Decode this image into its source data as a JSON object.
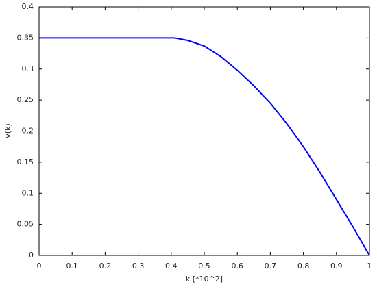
{
  "chart_data": {
    "type": "line",
    "x_label": "k [*10^2]",
    "y_label": "v(k)",
    "x": [
      0,
      0.1,
      0.2,
      0.3,
      0.4,
      0.41,
      0.45,
      0.5,
      0.55,
      0.6,
      0.65,
      0.7,
      0.75,
      0.8,
      0.85,
      0.9,
      0.95,
      1.0
    ],
    "series": [
      {
        "color": "#0000ff",
        "values": [
          0.35,
          0.35,
          0.35,
          0.35,
          0.35,
          0.35,
          0.346,
          0.337,
          0.32,
          0.298,
          0.273,
          0.245,
          0.212,
          0.175,
          0.134,
          0.09,
          0.046,
          0
        ]
      }
    ],
    "xlim": [
      0,
      1
    ],
    "ylim": [
      0,
      0.4
    ],
    "xticks": [
      0,
      0.1,
      0.2,
      0.3,
      0.4,
      0.5,
      0.6,
      0.7,
      0.8,
      0.9,
      1
    ],
    "yticks": [
      0,
      0.05,
      0.1,
      0.15,
      0.2,
      0.25,
      0.3,
      0.35,
      0.4
    ],
    "grid": false
  }
}
